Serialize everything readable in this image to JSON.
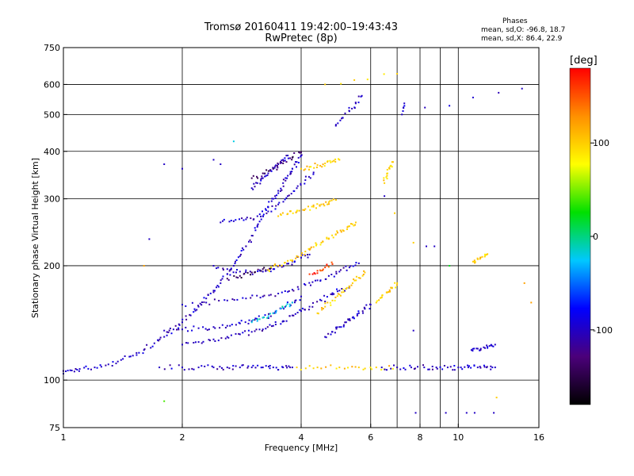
{
  "header": {
    "title_line1": "Tromsø 20160411 19:42:00–19:43:43",
    "title_line2": "RwPretec (8p)"
  },
  "phase_box": {
    "title": "Phases",
    "o_stats": "mean, sd,O: -96.8, 18.7",
    "x_stats": "mean, sd,X: 86.4, 22.9"
  },
  "colorbar": {
    "unit": "[deg]",
    "ticks": [
      {
        "value": 100,
        "label": "100"
      },
      {
        "value": 0,
        "label": "0"
      },
      {
        "value": -100,
        "label": "-100"
      }
    ],
    "range": [
      -180,
      180
    ],
    "colors": [
      "#000000",
      "#4b007a",
      "#0000ff",
      "#00c8ff",
      "#00e000",
      "#ffff00",
      "#ff9000",
      "#ff0000"
    ]
  },
  "chart_data": {
    "type": "scatter",
    "xlabel": "Frequency [MHz]",
    "ylabel": "Stationary phase Virtual Height [km]",
    "xscale": "log",
    "yscale": "log",
    "xlim": [
      1,
      16
    ],
    "ylim": [
      75,
      750
    ],
    "xticks": [
      {
        "value": 1,
        "label": "1"
      },
      {
        "value": 2,
        "label": "2"
      },
      {
        "value": 4,
        "label": "4"
      },
      {
        "value": 6,
        "label": "6"
      },
      {
        "value": 8,
        "label": "8"
      },
      {
        "value": 10,
        "label": "10"
      },
      {
        "value": 16,
        "label": "16"
      }
    ],
    "yticks": [
      {
        "value": 75,
        "label": "75"
      },
      {
        "value": 100,
        "label": "100"
      },
      {
        "value": 200,
        "label": "200"
      },
      {
        "value": 300,
        "label": "300"
      },
      {
        "value": 400,
        "label": "400"
      },
      {
        "value": 500,
        "label": "500"
      },
      {
        "value": 600,
        "label": "600"
      },
      {
        "value": 750,
        "label": "750"
      }
    ],
    "xgrid": [
      2,
      4,
      6,
      7,
      8,
      9,
      10
    ],
    "ygrid": [
      100,
      200,
      300,
      400,
      500,
      600
    ],
    "grid": true,
    "color_encodes": "phase (deg)",
    "traces": [
      {
        "phase": -100,
        "points": [
          [
            1.0,
            104
          ],
          [
            1.05,
            106
          ],
          [
            1.1,
            107
          ],
          [
            1.2,
            108
          ],
          [
            1.3,
            110
          ],
          [
            1.4,
            113
          ],
          [
            1.5,
            116
          ],
          [
            1.6,
            120
          ],
          [
            1.7,
            125
          ],
          [
            1.8,
            130
          ],
          [
            1.9,
            136
          ],
          [
            2.0,
            142
          ],
          [
            2.1,
            148
          ],
          [
            2.2,
            156
          ],
          [
            2.3,
            164
          ],
          [
            2.4,
            172
          ],
          [
            2.5,
            180
          ],
          [
            2.6,
            190
          ],
          [
            2.7,
            200
          ],
          [
            2.8,
            212
          ],
          [
            2.9,
            225
          ],
          [
            3.0,
            240
          ],
          [
            3.1,
            255
          ],
          [
            3.2,
            270
          ],
          [
            3.3,
            285
          ],
          [
            3.4,
            300
          ],
          [
            3.5,
            315
          ],
          [
            3.6,
            330
          ],
          [
            3.7,
            345
          ],
          [
            3.8,
            360
          ],
          [
            3.9,
            375
          ],
          [
            4.0,
            390
          ]
        ]
      },
      {
        "phase": -100,
        "points": [
          [
            1.75,
            108
          ],
          [
            2.0,
            108
          ],
          [
            2.2,
            108
          ],
          [
            2.4,
            108
          ],
          [
            2.6,
            108
          ],
          [
            2.8,
            108
          ],
          [
            3.0,
            108
          ],
          [
            3.2,
            108
          ],
          [
            3.4,
            108
          ],
          [
            3.6,
            108
          ],
          [
            3.8,
            108
          ]
        ]
      },
      {
        "phase": -100,
        "points": [
          [
            2.0,
            124
          ],
          [
            2.2,
            126
          ],
          [
            2.4,
            128
          ],
          [
            2.6,
            130
          ],
          [
            2.8,
            132
          ],
          [
            3.0,
            134
          ],
          [
            3.2,
            136
          ],
          [
            3.4,
            139
          ],
          [
            3.6,
            143
          ],
          [
            3.8,
            148
          ],
          [
            4.0,
            152
          ],
          [
            4.2,
            156
          ],
          [
            4.5,
            162
          ],
          [
            4.8,
            168
          ],
          [
            5.0,
            172
          ],
          [
            5.3,
            176
          ]
        ]
      },
      {
        "phase": -100,
        "points": [
          [
            1.8,
            135
          ],
          [
            2.0,
            136
          ],
          [
            2.2,
            137
          ],
          [
            2.4,
            138
          ],
          [
            2.6,
            139
          ],
          [
            2.8,
            141
          ],
          [
            3.0,
            143
          ],
          [
            3.2,
            146
          ],
          [
            3.4,
            150
          ],
          [
            3.6,
            155
          ],
          [
            3.8,
            160
          ],
          [
            4.0,
            166
          ]
        ]
      },
      {
        "phase": -100,
        "points": [
          [
            2.0,
            158
          ],
          [
            2.3,
            160
          ],
          [
            2.6,
            162
          ],
          [
            2.9,
            164
          ],
          [
            3.2,
            166
          ],
          [
            3.5,
            169
          ],
          [
            3.8,
            173
          ],
          [
            4.1,
            178
          ],
          [
            4.4,
            183
          ],
          [
            4.7,
            188
          ],
          [
            5.0,
            193
          ],
          [
            5.3,
            198
          ],
          [
            5.6,
            203
          ]
        ]
      },
      {
        "phase": -100,
        "points": [
          [
            2.4,
            200
          ],
          [
            2.6,
            196
          ],
          [
            2.8,
            193
          ],
          [
            3.0,
            192
          ],
          [
            3.2,
            193
          ],
          [
            3.4,
            196
          ],
          [
            3.6,
            200
          ],
          [
            3.8,
            205
          ],
          [
            4.0,
            210
          ],
          [
            4.2,
            214
          ]
        ]
      },
      {
        "phase": -100,
        "points": [
          [
            2.5,
            260
          ],
          [
            2.7,
            262
          ],
          [
            2.9,
            265
          ],
          [
            3.1,
            270
          ],
          [
            3.3,
            278
          ],
          [
            3.5,
            290
          ],
          [
            3.7,
            305
          ],
          [
            3.9,
            320
          ],
          [
            4.1,
            336
          ],
          [
            4.3,
            352
          ]
        ]
      },
      {
        "phase": -100,
        "points": [
          [
            3.0,
            320
          ],
          [
            3.1,
            330
          ],
          [
            3.2,
            340
          ],
          [
            3.3,
            350
          ],
          [
            3.4,
            360
          ],
          [
            3.5,
            370
          ],
          [
            3.6,
            380
          ],
          [
            3.7,
            390
          ]
        ]
      },
      {
        "phase": -100,
        "points": [
          [
            4.6,
            130
          ],
          [
            4.8,
            134
          ],
          [
            5.0,
            138
          ],
          [
            5.2,
            142
          ],
          [
            5.4,
            146
          ],
          [
            5.6,
            150
          ],
          [
            5.8,
            154
          ],
          [
            6.0,
            158
          ]
        ]
      },
      {
        "phase": -140,
        "points": [
          [
            3.0,
            340
          ],
          [
            3.2,
            350
          ],
          [
            3.4,
            360
          ],
          [
            3.6,
            372
          ],
          [
            3.8,
            385
          ],
          [
            4.0,
            398
          ]
        ]
      },
      {
        "phase": -140,
        "points": [
          [
            2.6,
            185
          ],
          [
            2.8,
            188
          ],
          [
            3.0,
            192
          ],
          [
            3.2,
            196
          ],
          [
            3.4,
            200
          ]
        ]
      },
      {
        "phase": -20,
        "points": [
          [
            3.0,
            142
          ],
          [
            3.2,
            146
          ],
          [
            3.4,
            150
          ],
          [
            3.6,
            155
          ],
          [
            3.8,
            160
          ]
        ]
      },
      {
        "phase": 100,
        "points": [
          [
            3.3,
            195
          ],
          [
            3.5,
            200
          ],
          [
            3.7,
            206
          ],
          [
            3.9,
            212
          ],
          [
            4.1,
            218
          ],
          [
            4.3,
            224
          ],
          [
            4.5,
            230
          ],
          [
            4.7,
            236
          ],
          [
            4.9,
            242
          ],
          [
            5.1,
            248
          ],
          [
            5.3,
            254
          ],
          [
            5.5,
            260
          ]
        ]
      },
      {
        "phase": 100,
        "points": [
          [
            3.5,
            270
          ],
          [
            3.7,
            274
          ],
          [
            3.9,
            278
          ],
          [
            4.1,
            282
          ],
          [
            4.3,
            286
          ],
          [
            4.5,
            290
          ],
          [
            4.7,
            294
          ],
          [
            4.9,
            298
          ]
        ]
      },
      {
        "phase": 100,
        "points": [
          [
            4.0,
            360
          ],
          [
            4.2,
            364
          ],
          [
            4.4,
            368
          ],
          [
            4.6,
            372
          ],
          [
            4.8,
            376
          ],
          [
            5.0,
            380
          ]
        ]
      },
      {
        "phase": 100,
        "points": [
          [
            4.4,
            150
          ],
          [
            4.6,
            156
          ],
          [
            4.8,
            162
          ],
          [
            5.0,
            168
          ],
          [
            5.2,
            174
          ],
          [
            5.4,
            180
          ],
          [
            5.6,
            186
          ],
          [
            5.8,
            192
          ]
        ]
      },
      {
        "phase": 100,
        "points": [
          [
            6.2,
            160
          ],
          [
            6.4,
            165
          ],
          [
            6.6,
            170
          ],
          [
            6.8,
            175
          ],
          [
            7.0,
            180
          ]
        ]
      },
      {
        "phase": 100,
        "points": [
          [
            6.5,
            330
          ],
          [
            6.6,
            345
          ],
          [
            6.7,
            360
          ],
          [
            6.8,
            375
          ]
        ]
      },
      {
        "phase": 100,
        "points": [
          [
            3.9,
            108
          ],
          [
            4.4,
            108
          ],
          [
            5.0,
            108
          ],
          [
            5.6,
            108
          ],
          [
            6.2,
            108
          ],
          [
            7.0,
            108
          ]
        ]
      },
      {
        "phase": -100,
        "points": [
          [
            6.4,
            108
          ],
          [
            7.0,
            108
          ],
          [
            7.6,
            108
          ],
          [
            8.2,
            108
          ],
          [
            8.8,
            108
          ],
          [
            9.4,
            108
          ],
          [
            10,
            108
          ],
          [
            10.6,
            108
          ],
          [
            11.2,
            108
          ],
          [
            11.8,
            108
          ],
          [
            12.4,
            108
          ]
        ]
      },
      {
        "phase": 160,
        "points": [
          [
            4.2,
            190
          ],
          [
            4.4,
            194
          ],
          [
            4.6,
            198
          ],
          [
            4.8,
            202
          ]
        ]
      },
      {
        "phase": -100,
        "points": [
          [
            10.8,
            120
          ],
          [
            11.2,
            121
          ],
          [
            11.6,
            122
          ],
          [
            12.0,
            123
          ],
          [
            12.4,
            124
          ]
        ]
      },
      {
        "phase": 100,
        "points": [
          [
            10.9,
            205
          ],
          [
            11.2,
            208
          ],
          [
            11.5,
            211
          ],
          [
            11.8,
            214
          ]
        ]
      },
      {
        "phase": -100,
        "points": [
          [
            4.9,
            470
          ],
          [
            5.1,
            490
          ],
          [
            5.3,
            510
          ],
          [
            5.5,
            535
          ],
          [
            5.7,
            560
          ]
        ]
      },
      {
        "phase": 100,
        "points": [
          [
            4.6,
            600
          ],
          [
            7.0,
            640
          ]
        ]
      },
      {
        "phase": -100,
        "points": [
          [
            14.5,
            585
          ],
          [
            7.2,
            500
          ],
          [
            7.3,
            535
          ]
        ]
      }
    ],
    "scatter_points": [
      [
        1.8,
        88,
        40
      ],
      [
        7.8,
        82,
        -100
      ],
      [
        9.3,
        82,
        -100
      ],
      [
        10.5,
        82,
        -100
      ],
      [
        11.0,
        82,
        -100
      ],
      [
        12.3,
        82,
        -100
      ],
      [
        12.5,
        90,
        100
      ],
      [
        15.3,
        160,
        120
      ],
      [
        14.7,
        180,
        120
      ],
      [
        9.5,
        200,
        20
      ],
      [
        8.3,
        225,
        -100
      ],
      [
        8.7,
        225,
        -100
      ],
      [
        7.7,
        135,
        -100
      ],
      [
        7.7,
        230,
        100
      ],
      [
        6.9,
        275,
        100
      ],
      [
        6.5,
        305,
        -100
      ],
      [
        1.6,
        200,
        120
      ],
      [
        1.65,
        235,
        -100
      ],
      [
        2.7,
        425,
        -20
      ],
      [
        1.8,
        370,
        -100
      ],
      [
        2.0,
        360,
        -100
      ],
      [
        2.4,
        380,
        -100
      ],
      [
        2.5,
        370,
        -100
      ]
    ]
  }
}
